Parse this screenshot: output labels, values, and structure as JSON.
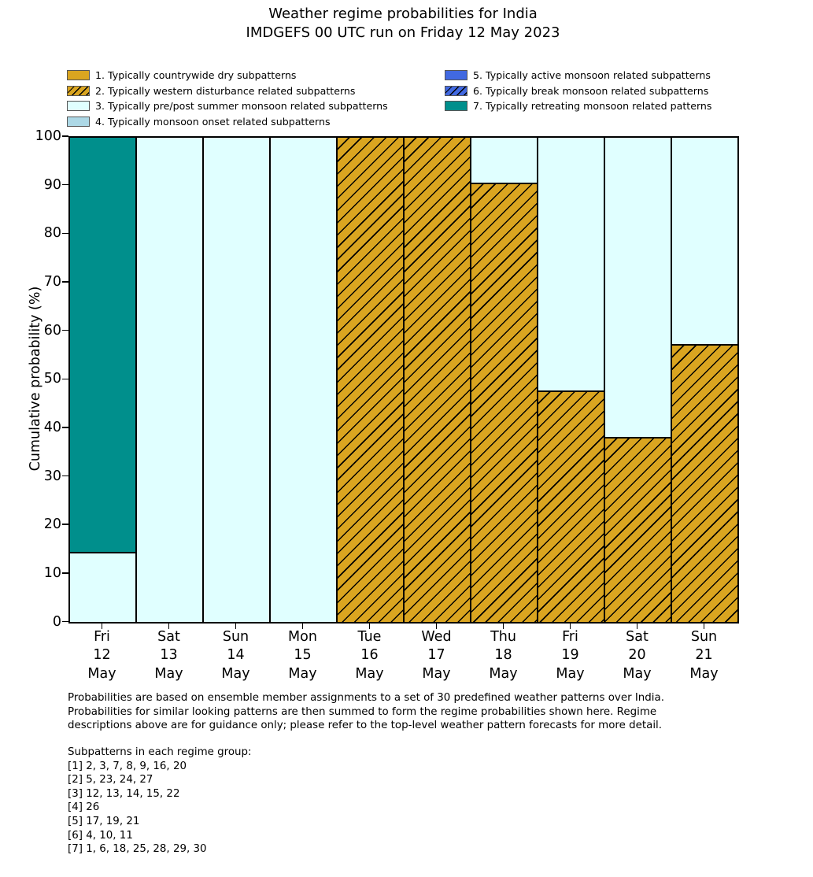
{
  "title": {
    "line1": "Weather regime probabilities for India",
    "line2": "IMDGEFS 00 UTC run on Friday 12 May 2023"
  },
  "colors": {
    "goldenrod": "#DAA520",
    "lightcyan": "#E0FFFF",
    "lightblue": "#ADD8E6",
    "royalblue": "#4169E1",
    "teal": "#008F8C",
    "edge": "#000000"
  },
  "legend": {
    "left": [
      {
        "label": "1. Typically countrywide dry subpatterns",
        "color": "#DAA520",
        "hatch": false
      },
      {
        "label": "2. Typically western disturbance related subpatterns",
        "color": "#DAA520",
        "hatch": true
      },
      {
        "label": "3. Typically pre/post summer monsoon related subpatterns",
        "color": "#E0FFFF",
        "hatch": false
      },
      {
        "label": "4. Typically monsoon onset related subpatterns",
        "color": "#ADD8E6",
        "hatch": false
      }
    ],
    "right": [
      {
        "label": "5. Typically active monsoon related subpatterns",
        "color": "#4169E1",
        "hatch": false
      },
      {
        "label": "6. Typically break monsoon related subpatterns",
        "color": "#4169E1",
        "hatch": true
      },
      {
        "label": "7. Typically retreating monsoon related patterns",
        "color": "#008F8C",
        "hatch": false
      }
    ]
  },
  "chart_data": {
    "type": "bar",
    "stacked": true,
    "title": "Weather regime probabilities for India",
    "subtitle": "IMDGEFS 00 UTC run on Friday 12 May 2023",
    "ylabel": "Cumulative probability (%)",
    "xlabel": "",
    "ylim": [
      0,
      100
    ],
    "yticks": [
      0,
      10,
      20,
      30,
      40,
      50,
      60,
      70,
      80,
      90,
      100
    ],
    "grid": false,
    "legend_position": "top",
    "categories": [
      [
        "Fri",
        "12",
        "May"
      ],
      [
        "Sat",
        "13",
        "May"
      ],
      [
        "Sun",
        "14",
        "May"
      ],
      [
        "Mon",
        "15",
        "May"
      ],
      [
        "Tue",
        "16",
        "May"
      ],
      [
        "Wed",
        "17",
        "May"
      ],
      [
        "Thu",
        "18",
        "May"
      ],
      [
        "Fri",
        "19",
        "May"
      ],
      [
        "Sat",
        "20",
        "May"
      ],
      [
        "Sun",
        "21",
        "May"
      ]
    ],
    "series": [
      {
        "name": "1. Typically countrywide dry subpatterns",
        "color": "#DAA520",
        "hatch": false,
        "values": [
          0,
          0,
          0,
          0,
          0,
          0,
          0,
          0,
          0,
          0
        ]
      },
      {
        "name": "2. Typically western disturbance related subpatterns",
        "color": "#DAA520",
        "hatch": true,
        "values": [
          0,
          0,
          0,
          0,
          100,
          100,
          90.5,
          47.6,
          38.1,
          57.1
        ]
      },
      {
        "name": "3. Typically pre/post summer monsoon related subpatterns",
        "color": "#E0FFFF",
        "hatch": false,
        "values": [
          14.3,
          100,
          100,
          100,
          0,
          0,
          9.5,
          52.4,
          61.9,
          42.9
        ]
      },
      {
        "name": "4. Typically monsoon onset related subpatterns",
        "color": "#ADD8E6",
        "hatch": false,
        "values": [
          0,
          0,
          0,
          0,
          0,
          0,
          0,
          0,
          0,
          0
        ]
      },
      {
        "name": "5. Typically active monsoon related subpatterns",
        "color": "#4169E1",
        "hatch": false,
        "values": [
          0,
          0,
          0,
          0,
          0,
          0,
          0,
          0,
          0,
          0
        ]
      },
      {
        "name": "6. Typically break monsoon related subpatterns",
        "color": "#4169E1",
        "hatch": true,
        "values": [
          0,
          0,
          0,
          0,
          0,
          0,
          0,
          0,
          0,
          0
        ]
      },
      {
        "name": "7. Typically retreating monsoon related patterns",
        "color": "#008F8C",
        "hatch": false,
        "values": [
          85.7,
          0,
          0,
          0,
          0,
          0,
          0,
          0,
          0,
          0
        ]
      }
    ]
  },
  "footnote_lines": [
    "Probabilities are based on ensemble member assignments to a set of 30 predefined weather patterns over India.",
    "Probabilities for similar looking patterns are then summed to form the regime probabilities shown here. Regime",
    "descriptions above are for guidance only; please refer to the top-level weather pattern forecasts for more detail."
  ],
  "subpatterns": {
    "header": "Subpatterns in each regime group:",
    "lines": [
      "[1] 2, 3, 7, 8, 9, 16, 20",
      "[2] 5, 23, 24, 27",
      "[3] 12, 13, 14, 15, 22",
      "[4] 26",
      "[5] 17, 19, 21",
      "[6] 4, 10, 11",
      "[7] 1, 6, 18, 25, 28, 29, 30"
    ]
  }
}
